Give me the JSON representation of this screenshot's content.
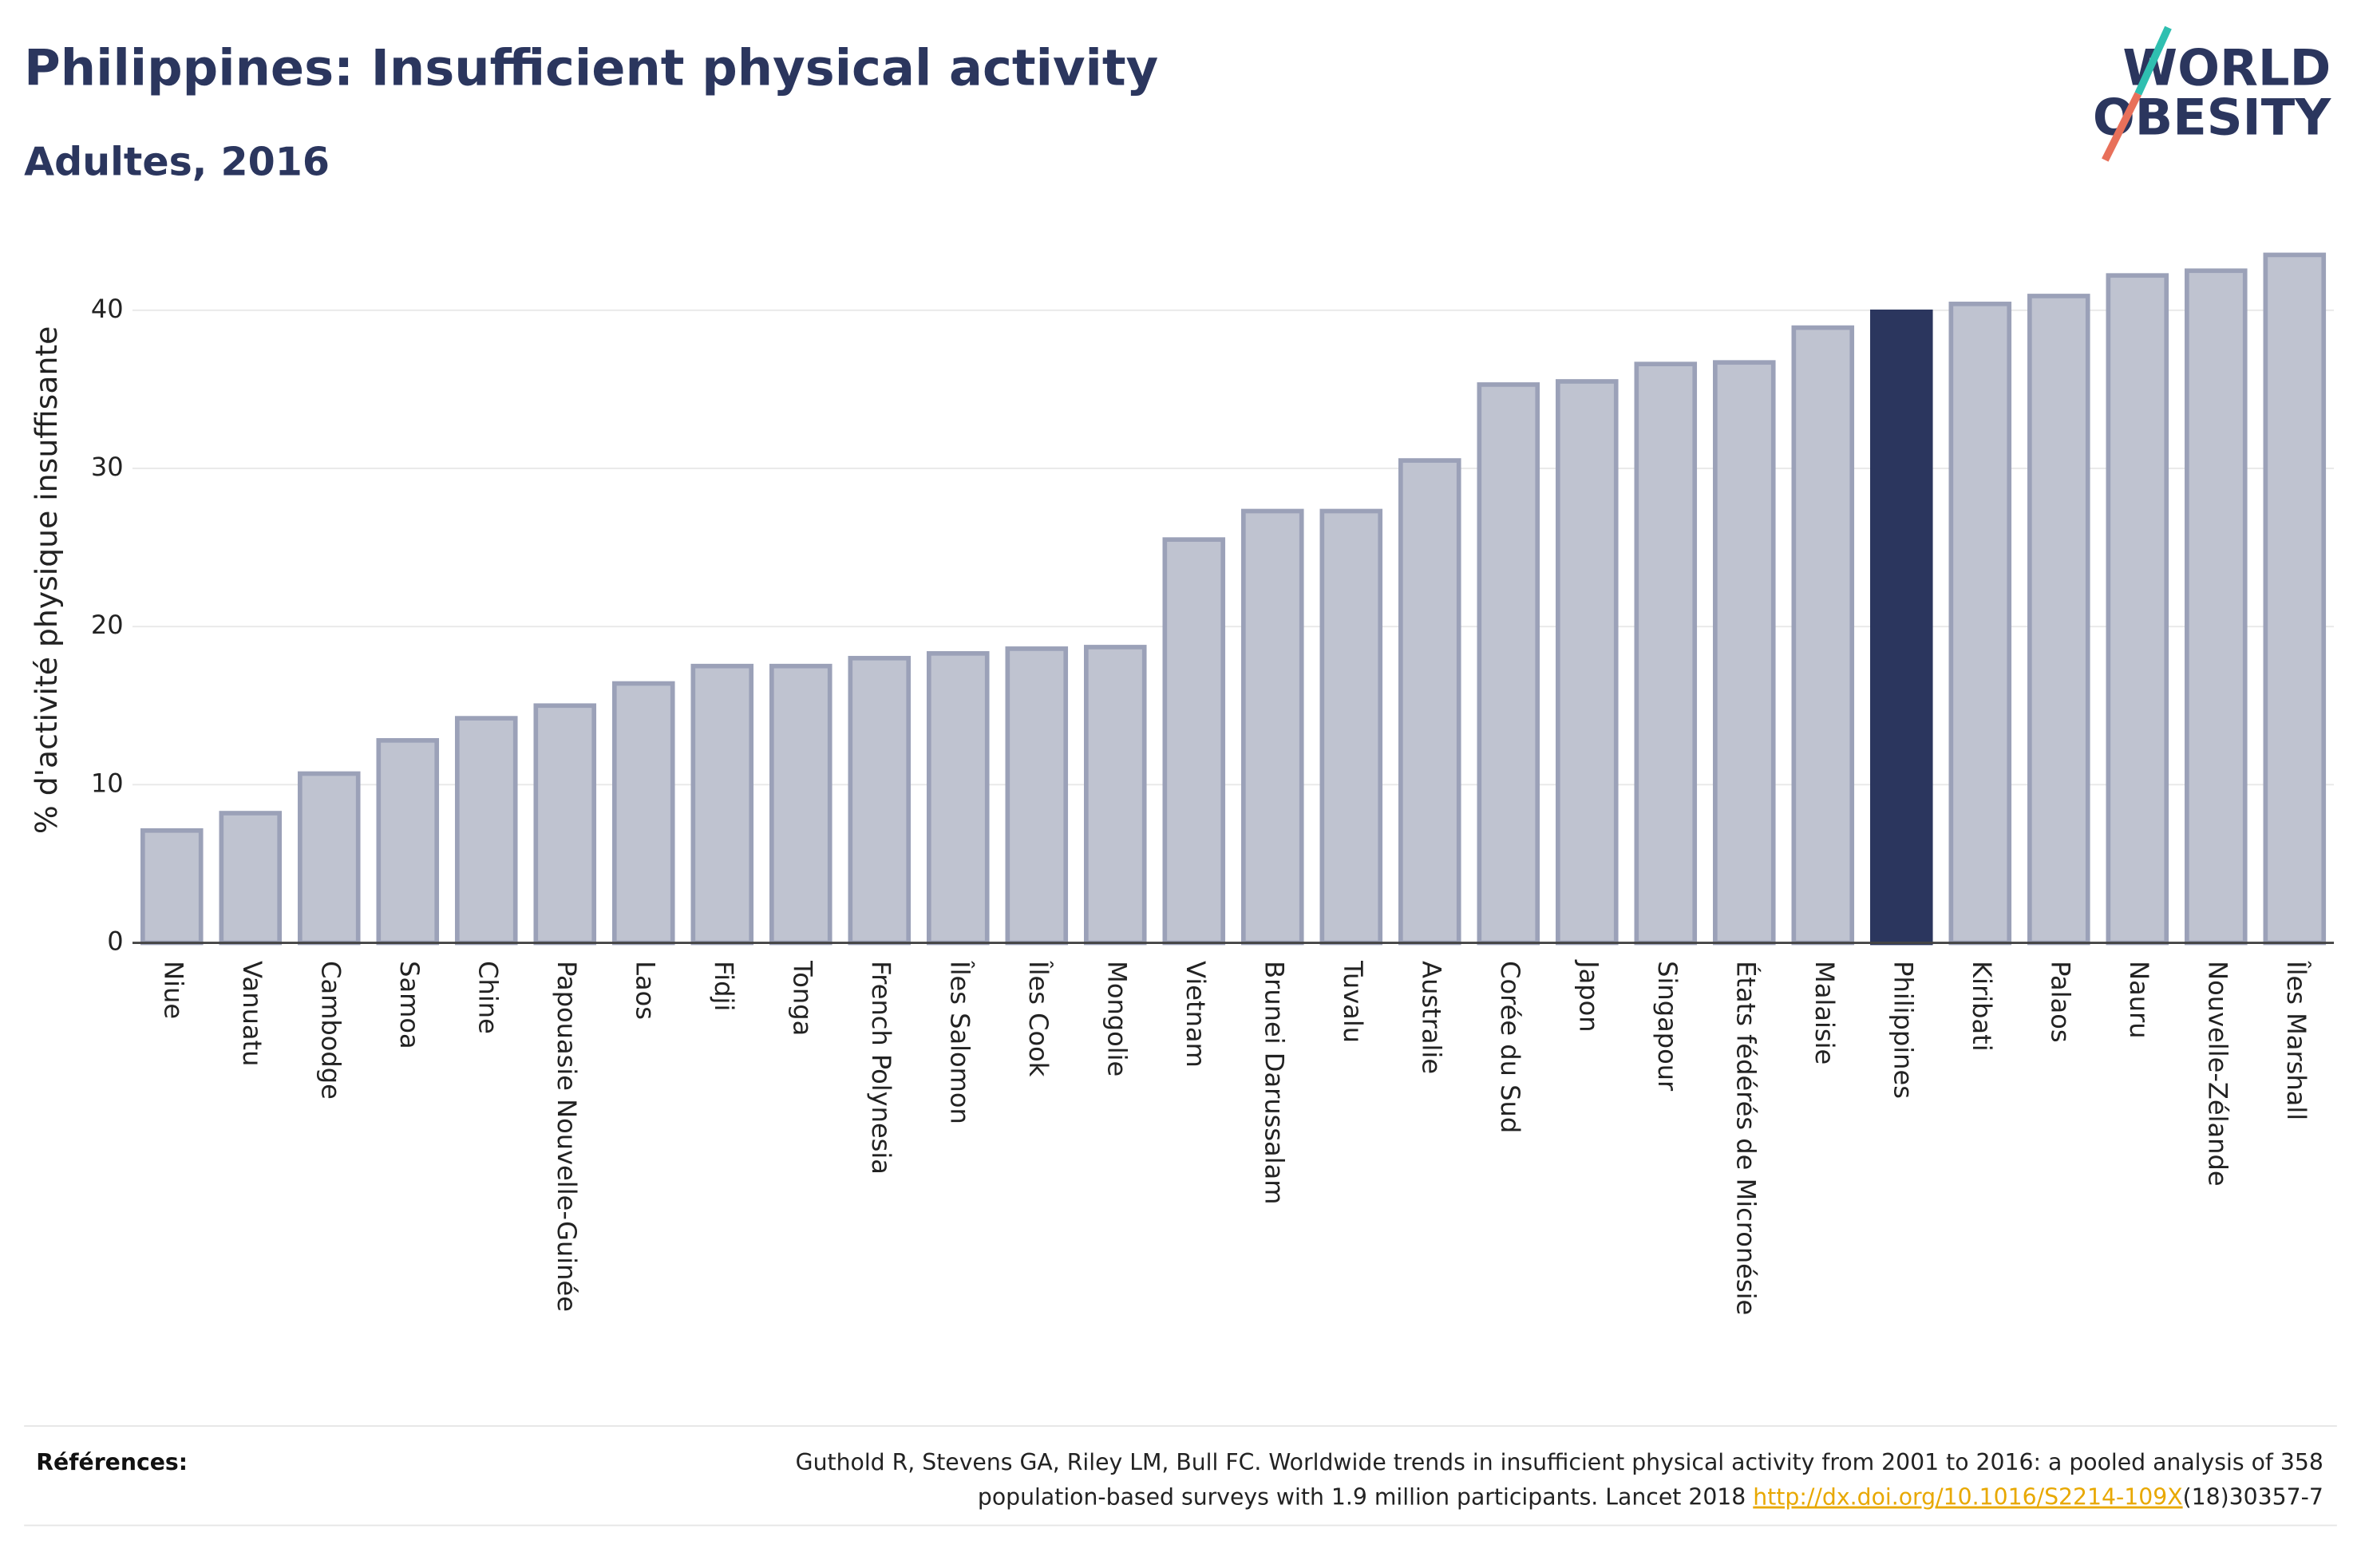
{
  "chart_data": {
    "type": "bar",
    "title": "Philippines: Insufficient physical activity",
    "subtitle": "Adultes, 2016",
    "y_label": "% d'activité physique insuffisante",
    "categories": [
      "Niue",
      "Vanuatu",
      "Cambodge",
      "Samoa",
      "Chine",
      "Papouasie Nouvelle-Guinée",
      "Laos",
      "Fidji",
      "Tonga",
      "French Polynesia",
      "Îles Salomon",
      "Îles Cook",
      "Mongolie",
      "Vietnam",
      "Brunei Darussalam",
      "Tuvalu",
      "Australie",
      "Corée du Sud",
      "Japon",
      "Singapour",
      "États fédérés de Micronésie",
      "Malaisie",
      "Philippines",
      "Kiribati",
      "Palaos",
      "Nauru",
      "Nouvelle-Zélande",
      "Îles Marshall"
    ],
    "values": [
      7.1,
      8.2,
      10.7,
      12.8,
      14.2,
      15.0,
      16.4,
      17.5,
      17.5,
      18.0,
      18.3,
      18.6,
      18.7,
      25.5,
      27.3,
      27.3,
      30.5,
      35.3,
      35.5,
      36.6,
      36.7,
      38.9,
      39.9,
      40.4,
      40.9,
      42.2,
      42.5,
      43.5
    ],
    "colors": [
      "#bfc3d0",
      "#bfc3d0",
      "#bfc3d0",
      "#bfc3d0",
      "#bfc3d0",
      "#bfc3d0",
      "#bfc3d0",
      "#bfc3d0",
      "#bfc3d0",
      "#bfc3d0",
      "#bfc3d0",
      "#bfc3d0",
      "#bfc3d0",
      "#bfc3d0",
      "#bfc3d0",
      "#bfc3d0",
      "#bfc3d0",
      "#bfc3d0",
      "#bfc3d0",
      "#bfc3d0",
      "#bfc3d0",
      "#bfc3d0",
      "#2b365e",
      "#bfc3d0",
      "#bfc3d0",
      "#bfc3d0",
      "#bfc3d0",
      "#bfc3d0"
    ],
    "ylim": [
      0,
      45.5
    ],
    "yticks": [
      0,
      10,
      20,
      30,
      40
    ],
    "grid": true
  },
  "logo": {
    "line1": "WORLD",
    "line2": "OBESITY"
  },
  "references": {
    "label": "Références:",
    "line1": "Guthold R, Stevens GA, Riley LM, Bull FC. Worldwide trends in insufficient physical activity from 2001 to 2016: a pooled analysis of 358",
    "line2": "population-based surveys with 1.9 million participants. Lancet 2018 ",
    "link": "http://dx.doi.org/10.1016/S2214-109X",
    "after_link": "(18)30357-7"
  }
}
